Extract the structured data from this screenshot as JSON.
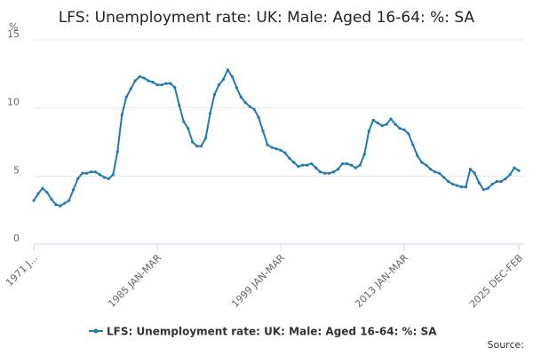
{
  "chart_data": {
    "type": "line",
    "title": "LFS: Unemployment rate: UK: Male: Aged 16-64: %: SA",
    "y_label": "%",
    "source": "Source:",
    "categories": [
      "1971 J...",
      null,
      null,
      null,
      null,
      null,
      null,
      null,
      null,
      null,
      null,
      null,
      null,
      null,
      null,
      null,
      null,
      null,
      null,
      null,
      null,
      null,
      null,
      null,
      null,
      null,
      null,
      null,
      "1985 JAN-MAR",
      null,
      null,
      null,
      null,
      null,
      null,
      null,
      null,
      null,
      null,
      null,
      null,
      null,
      null,
      null,
      null,
      null,
      null,
      null,
      null,
      null,
      null,
      null,
      null,
      null,
      null,
      null,
      "1999 JAN-MAR",
      null,
      null,
      null,
      null,
      null,
      null,
      null,
      null,
      null,
      null,
      null,
      null,
      null,
      null,
      null,
      null,
      null,
      null,
      null,
      null,
      null,
      null,
      null,
      null,
      null,
      null,
      null,
      "2013 JAN-MAR",
      null,
      null,
      null,
      null,
      null,
      null,
      null,
      null,
      null,
      null,
      null,
      null,
      null,
      null,
      null,
      null,
      null,
      null,
      null,
      null,
      null,
      null,
      null,
      null,
      null,
      "2025 DEC-FEB"
    ],
    "series": [
      {
        "name": "LFS: Unemployment rate: UK: Male: Aged 16-64: %: SA",
        "color": "#1f7ab5",
        "values": [
          3.2,
          3.7,
          4.1,
          3.8,
          3.3,
          2.9,
          2.8,
          3.0,
          3.2,
          4.0,
          4.8,
          5.2,
          5.2,
          5.3,
          5.3,
          5.1,
          4.9,
          4.8,
          5.1,
          6.8,
          9.5,
          10.8,
          11.4,
          12.0,
          12.3,
          12.2,
          12.0,
          11.9,
          11.7,
          11.7,
          11.8,
          11.8,
          11.5,
          10.2,
          9.0,
          8.5,
          7.5,
          7.2,
          7.2,
          7.8,
          9.6,
          11.0,
          11.7,
          12.1,
          12.8,
          12.3,
          11.5,
          10.8,
          10.4,
          10.1,
          9.9,
          9.3,
          8.3,
          7.3,
          7.1,
          7.0,
          6.9,
          6.7,
          6.3,
          6.0,
          5.7,
          5.8,
          5.8,
          5.9,
          5.6,
          5.3,
          5.2,
          5.2,
          5.3,
          5.5,
          5.9,
          5.9,
          5.8,
          5.6,
          5.8,
          6.6,
          8.3,
          9.1,
          8.9,
          8.7,
          8.8,
          9.2,
          8.8,
          8.5,
          8.4,
          8.1,
          7.3,
          6.5,
          6.0,
          5.8,
          5.5,
          5.3,
          5.2,
          4.9,
          4.6,
          4.4,
          4.3,
          4.2,
          4.2,
          5.5,
          5.2,
          4.5,
          4.0,
          4.1,
          4.4,
          4.6,
          4.6,
          4.8,
          5.1,
          5.6,
          5.4
        ]
      }
    ],
    "ylim": [
      0,
      15
    ],
    "yticks": [
      0,
      5,
      10,
      15
    ],
    "grid": true
  }
}
